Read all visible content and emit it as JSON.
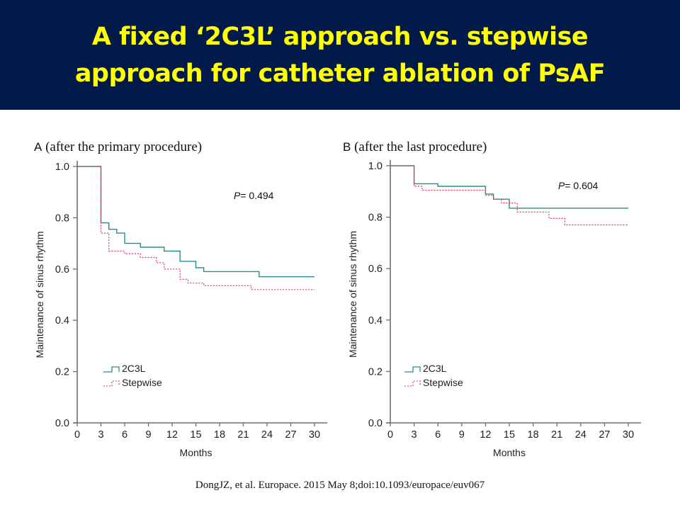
{
  "slide": {
    "title_line1": "A fixed ‘2C3L’ approach vs. stepwise",
    "title_line2": "approach for catheter ablation of PsAF",
    "citation": "DongJZ, et al. Europace. 2015 May 8;doi:10.1093/europace/euv067",
    "colors": {
      "header_bg": "#021a4a",
      "title": "#ffff00",
      "series_2c3l": "#2e8b8b",
      "series_stepwise": "#e0305a"
    }
  },
  "chart_data": [
    {
      "type": "line",
      "panel": "A",
      "subtitle": "(after the primary procedure)",
      "xlabel": "Months",
      "ylabel": "Maintenance of sinus rhythm",
      "xlim": [
        0,
        30
      ],
      "ylim": [
        0,
        1.0
      ],
      "xticks": [
        "0",
        "3",
        "6",
        "9",
        "12",
        "15",
        "18",
        "21",
        "24",
        "27",
        "30"
      ],
      "yticks": [
        "0.0",
        "0.2",
        "0.4",
        "0.6",
        "0.8",
        "1.0"
      ],
      "grid": false,
      "annotation": {
        "italic": "P",
        "text": "= 0.494"
      },
      "legend_position": "bottom-left",
      "series": [
        {
          "name": "2C3L",
          "style": "solid",
          "steps": [
            [
              0,
              1.0
            ],
            [
              3,
              0.78
            ],
            [
              4,
              0.755
            ],
            [
              5,
              0.74
            ],
            [
              6,
              0.7
            ],
            [
              8,
              0.685
            ],
            [
              11,
              0.67
            ],
            [
              13,
              0.63
            ],
            [
              15,
              0.605
            ],
            [
              16,
              0.59
            ],
            [
              23,
              0.57
            ],
            [
              30,
              0.57
            ]
          ]
        },
        {
          "name": "Stepwise",
          "style": "dotted",
          "steps": [
            [
              0,
              1.0
            ],
            [
              3,
              0.74
            ],
            [
              4,
              0.67
            ],
            [
              6,
              0.66
            ],
            [
              8,
              0.645
            ],
            [
              10,
              0.625
            ],
            [
              11,
              0.6
            ],
            [
              13,
              0.56
            ],
            [
              14,
              0.545
            ],
            [
              16,
              0.535
            ],
            [
              22,
              0.52
            ],
            [
              30,
              0.52
            ]
          ]
        }
      ]
    },
    {
      "type": "line",
      "panel": "B",
      "subtitle": "(after the last procedure)",
      "xlabel": "Months",
      "ylabel": "Maintenance of sinus rhythm",
      "xlim": [
        0,
        30
      ],
      "ylim": [
        0,
        1.0
      ],
      "xticks": [
        "0",
        "3",
        "6",
        "9",
        "12",
        "15",
        "18",
        "21",
        "24",
        "27",
        "30"
      ],
      "yticks": [
        "0.0",
        "0.2",
        "0.4",
        "0.6",
        "0.8",
        "1.0"
      ],
      "grid": false,
      "annotation": {
        "italic": "P",
        "text": "= 0.604"
      },
      "legend_position": "bottom-left",
      "series": [
        {
          "name": "2C3L",
          "style": "solid",
          "steps": [
            [
              0,
              1.0
            ],
            [
              3,
              0.93
            ],
            [
              6,
              0.92
            ],
            [
              12,
              0.89
            ],
            [
              13,
              0.87
            ],
            [
              15,
              0.835
            ],
            [
              30,
              0.835
            ]
          ]
        },
        {
          "name": "Stepwise",
          "style": "dotted",
          "steps": [
            [
              0,
              1.0
            ],
            [
              3,
              0.92
            ],
            [
              4,
              0.905
            ],
            [
              12,
              0.885
            ],
            [
              13,
              0.87
            ],
            [
              14,
              0.855
            ],
            [
              16,
              0.82
            ],
            [
              20,
              0.795
            ],
            [
              22,
              0.77
            ],
            [
              30,
              0.77
            ]
          ]
        }
      ]
    }
  ]
}
